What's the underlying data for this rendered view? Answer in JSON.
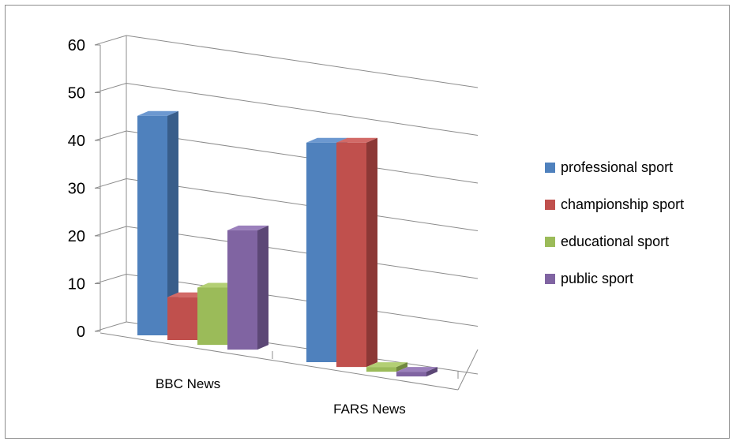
{
  "chart_data": {
    "type": "bar",
    "style": "3d-clustered-column",
    "categories": [
      "BBC News",
      "FARS News"
    ],
    "series": [
      {
        "name": "professional sport",
        "values": [
          46,
          46
        ],
        "color": "#4f81bd",
        "side": "#385d8a",
        "top": "#6c98d0"
      },
      {
        "name": "championship sport",
        "values": [
          9,
          47
        ],
        "color": "#c0504d",
        "side": "#8c3836",
        "top": "#d26a67"
      },
      {
        "name": "educational sport",
        "values": [
          12,
          1
        ],
        "color": "#9bbb59",
        "side": "#71893f",
        "top": "#b3cf74"
      },
      {
        "name": "public sport",
        "values": [
          25,
          1
        ],
        "color": "#8064a2",
        "side": "#5c4776",
        "top": "#9b80bc"
      }
    ],
    "yticks": [
      0,
      10,
      20,
      30,
      40,
      50,
      60
    ],
    "ylim": [
      0,
      60
    ],
    "grid": true,
    "legend": "right",
    "title": "",
    "xlabel": "",
    "ylabel": ""
  }
}
